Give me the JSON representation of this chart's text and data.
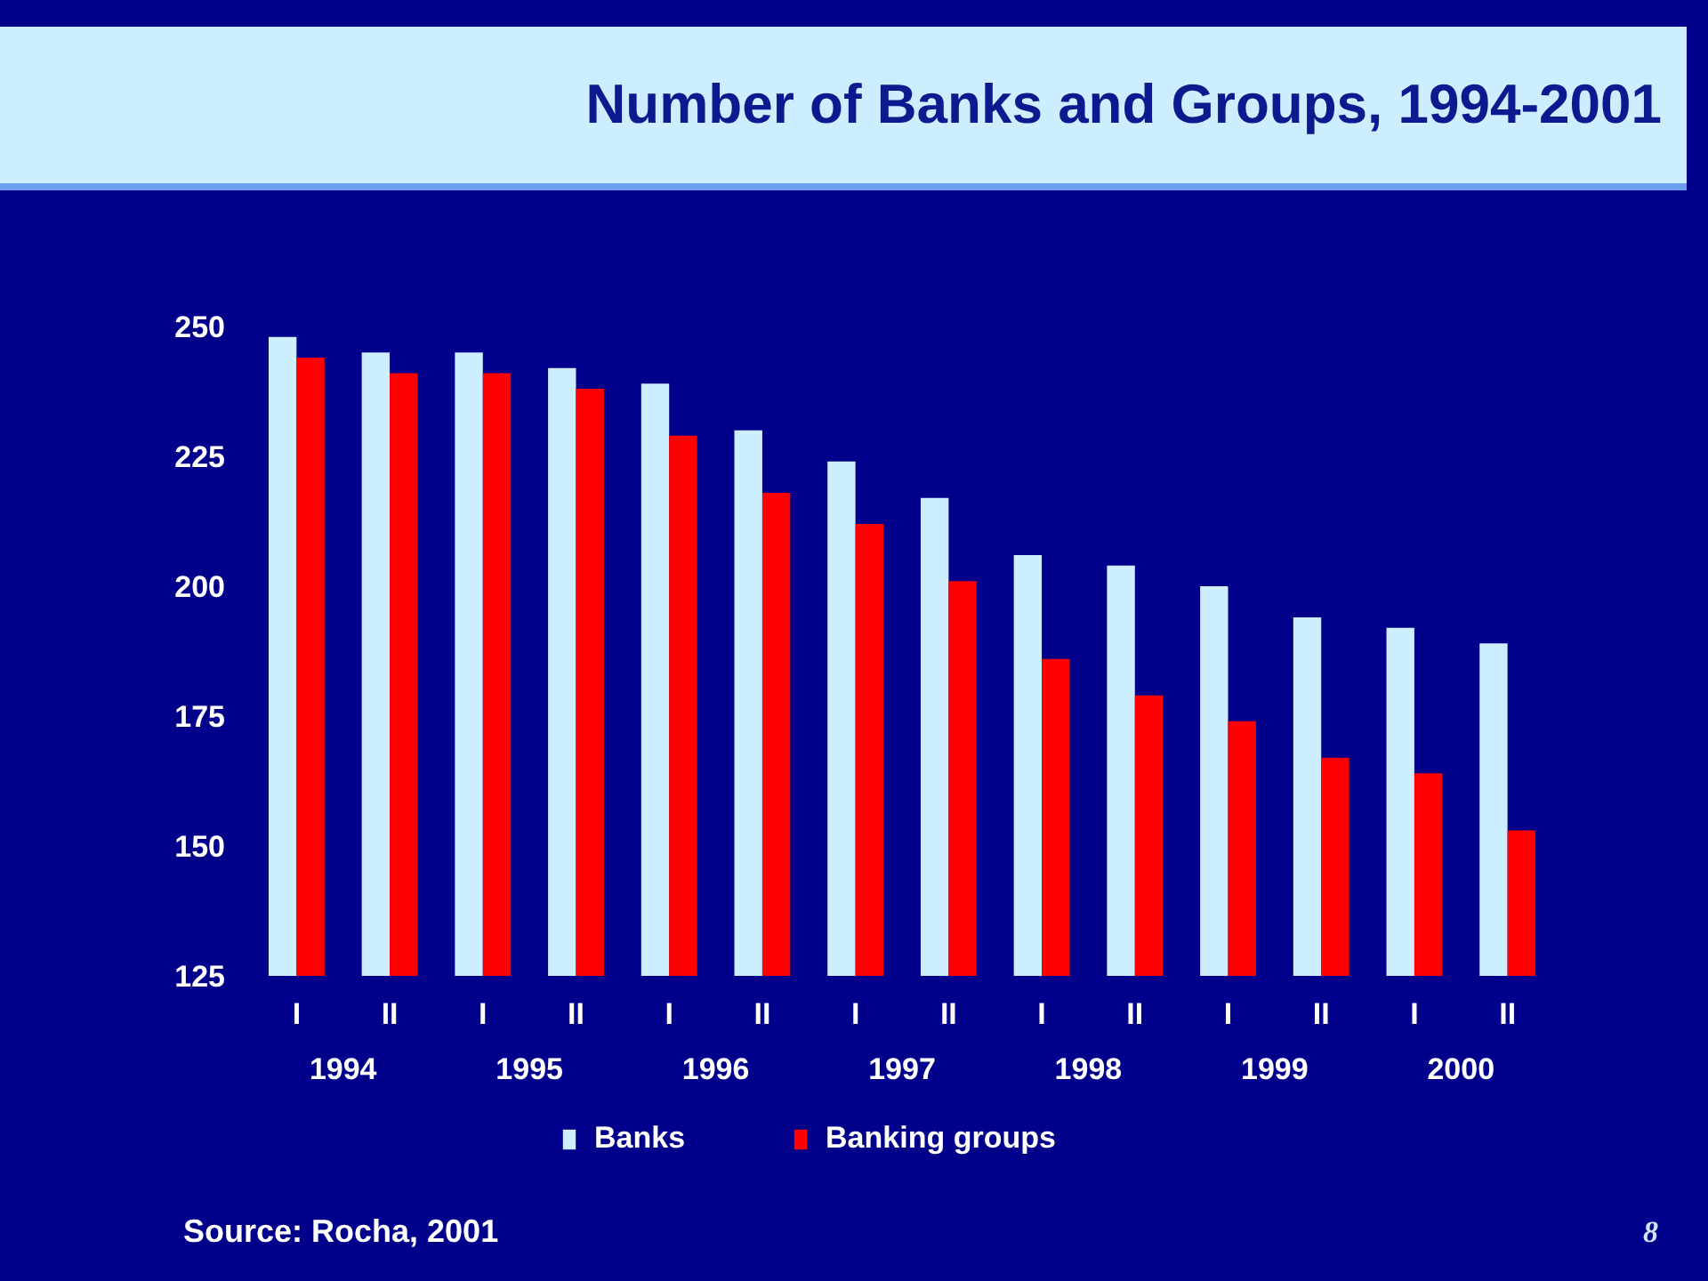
{
  "chart_data": {
    "type": "bar",
    "title": "Number of Banks and Groups, 1994-2001",
    "categories": [
      "I",
      "II",
      "I",
      "II",
      "I",
      "II",
      "I",
      "II",
      "I",
      "II",
      "I",
      "II",
      "I",
      "II"
    ],
    "series": [
      {
        "name": "Banks",
        "color": "#cceeff",
        "values": [
          248,
          245,
          245,
          242,
          239,
          230,
          224,
          217,
          206,
          204,
          200,
          194,
          192,
          189
        ]
      },
      {
        "name": "Banking groups",
        "color": "#ff0000",
        "values": [
          244,
          241,
          241,
          238,
          229,
          218,
          212,
          201,
          186,
          179,
          174,
          167,
          164,
          153
        ]
      }
    ],
    "ylim": [
      125,
      250
    ],
    "yticks": [
      125,
      150,
      175,
      200,
      225,
      250
    ],
    "grid": false,
    "legend": "bottom",
    "annotations": [
      "1994",
      "1995",
      "1996",
      "1997",
      "1998",
      "1999",
      "2000",
      "Source: Rocha, 2001",
      "8"
    ]
  }
}
